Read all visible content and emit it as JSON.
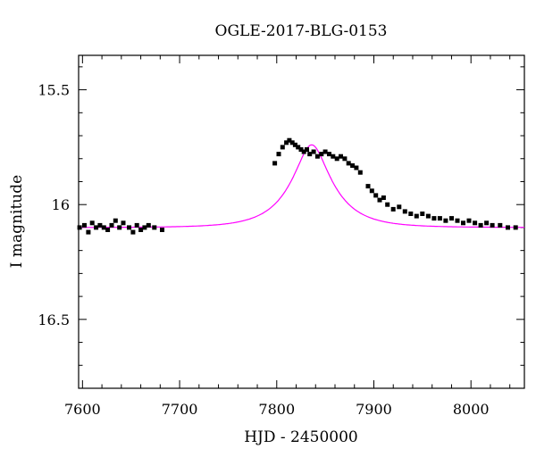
{
  "chart_data": {
    "type": "scatter",
    "title": "OGLE-2017-BLG-0153",
    "xlabel": "HJD - 2450000",
    "ylabel": "I magnitude",
    "xlim": [
      7596,
      8055
    ],
    "ylim": [
      16.8,
      15.35
    ],
    "y_inverted": true,
    "grid": false,
    "x_ticks": [
      7600,
      7700,
      7800,
      7900,
      8000
    ],
    "x_tick_labels": [
      "7600",
      "7700",
      "7800",
      "7900",
      "8000"
    ],
    "y_ticks": [
      15.5,
      16,
      16.5
    ],
    "y_tick_labels": [
      "15.5",
      "16",
      "16.5"
    ],
    "series": [
      {
        "kind": "points",
        "color": "#000000",
        "x": [
          7597,
          7602,
          7606,
          7610,
          7614,
          7618,
          7622,
          7626,
          7630,
          7634,
          7638,
          7642,
          7648,
          7652,
          7656,
          7660,
          7664,
          7668,
          7674,
          7682,
          7798,
          7802,
          7806,
          7810,
          7813,
          7816,
          7819,
          7822,
          7825,
          7828,
          7831,
          7834,
          7838,
          7842,
          7846,
          7850,
          7854,
          7858,
          7862,
          7866,
          7870,
          7874,
          7878,
          7882,
          7886,
          7894,
          7898,
          7902,
          7906,
          7910,
          7914,
          7920,
          7926,
          7932,
          7938,
          7944,
          7950,
          7956,
          7962,
          7968,
          7974,
          7980,
          7986,
          7992,
          7998,
          8004,
          8010,
          8016,
          8022,
          8030,
          8038,
          8046
        ],
        "y": [
          16.1,
          16.09,
          16.12,
          16.08,
          16.1,
          16.09,
          16.1,
          16.11,
          16.09,
          16.07,
          16.1,
          16.08,
          16.1,
          16.12,
          16.09,
          16.11,
          16.1,
          16.09,
          16.1,
          16.11,
          15.82,
          15.78,
          15.75,
          15.73,
          15.72,
          15.73,
          15.74,
          15.75,
          15.76,
          15.77,
          15.76,
          15.78,
          15.77,
          15.79,
          15.78,
          15.77,
          15.78,
          15.79,
          15.8,
          15.79,
          15.8,
          15.82,
          15.83,
          15.84,
          15.86,
          15.92,
          15.94,
          15.96,
          15.98,
          15.97,
          16.0,
          16.02,
          16.01,
          16.03,
          16.04,
          16.05,
          16.04,
          16.05,
          16.06,
          16.06,
          16.07,
          16.06,
          16.07,
          16.08,
          16.07,
          16.08,
          16.09,
          16.08,
          16.09,
          16.09,
          16.1,
          16.1
        ]
      },
      {
        "kind": "model",
        "color": "#ff00ff",
        "peak_x": 7836,
        "baseline_mag": 16.1,
        "peak_mag": 15.74,
        "timescale": 42
      }
    ]
  }
}
